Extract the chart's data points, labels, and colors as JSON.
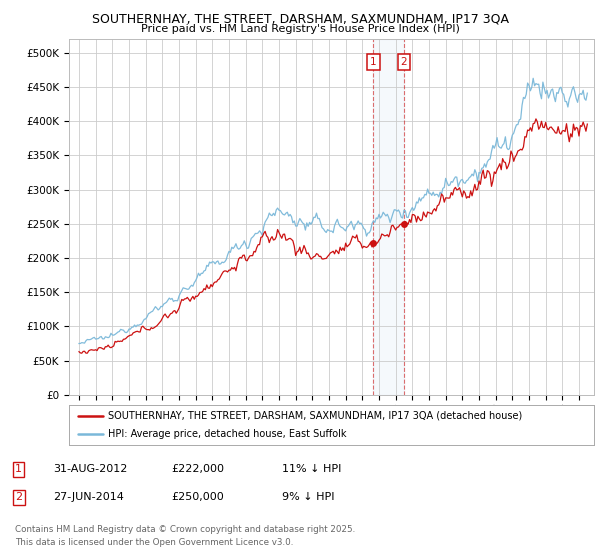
{
  "title": "SOUTHERNHAY, THE STREET, DARSHAM, SAXMUNDHAM, IP17 3QA",
  "subtitle": "Price paid vs. HM Land Registry's House Price Index (HPI)",
  "ylabel_ticks": [
    "£0",
    "£50K",
    "£100K",
    "£150K",
    "£200K",
    "£250K",
    "£300K",
    "£350K",
    "£400K",
    "£450K",
    "£500K"
  ],
  "ytick_values": [
    0,
    50000,
    100000,
    150000,
    200000,
    250000,
    300000,
    350000,
    400000,
    450000,
    500000
  ],
  "ylim": [
    0,
    520000
  ],
  "hpi_color": "#7ab8d9",
  "price_color": "#cc1111",
  "marker1_price": 222000,
  "marker2_price": 250000,
  "marker1_year": 2012.667,
  "marker2_year": 2014.5,
  "legend1": "SOUTHERNHAY, THE STREET, DARSHAM, SAXMUNDHAM, IP17 3QA (detached house)",
  "legend2": "HPI: Average price, detached house, East Suffolk",
  "footer": "Contains HM Land Registry data © Crown copyright and database right 2025.\nThis data is licensed under the Open Government Licence v3.0.",
  "background_color": "#ffffff",
  "grid_color": "#cccccc"
}
